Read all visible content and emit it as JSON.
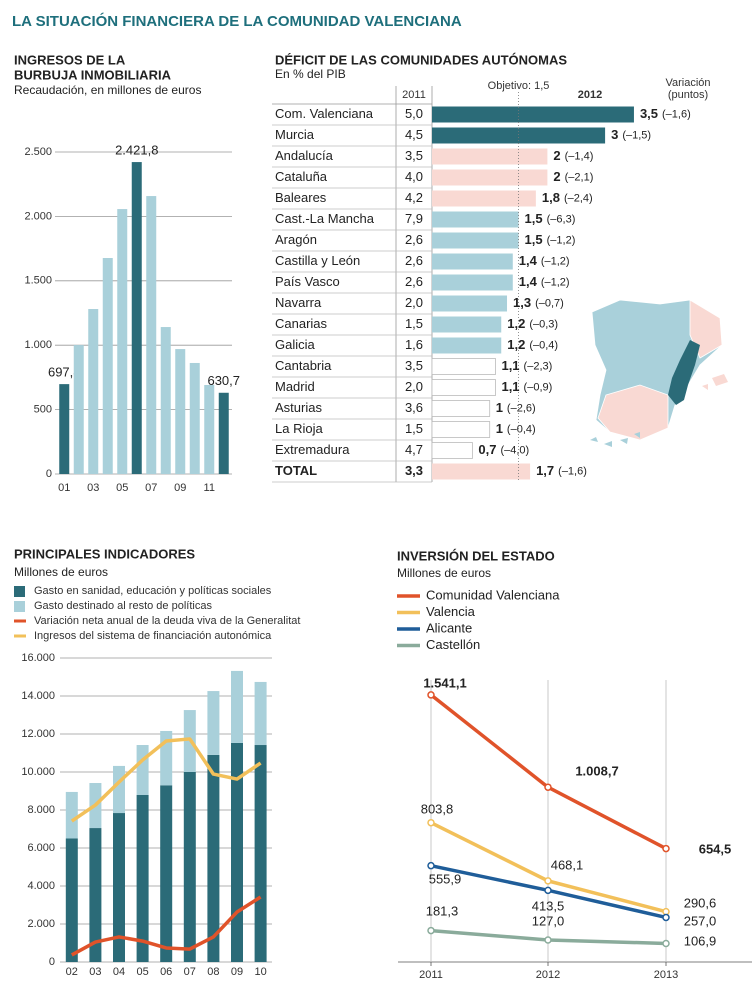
{
  "title": "LA SITUACIÓN FINANCIERA DE LA COMUNIDAD VALENCIANA",
  "chart_data": [
    {
      "type": "bar",
      "title": [
        "INGRESOS DE LA",
        "BURBUJA INMOBILIARIA"
      ],
      "subtitle": "Recaudación, en millones de euros",
      "categories": [
        "01",
        null,
        "03",
        null,
        "05",
        null,
        "07",
        null,
        "09",
        null,
        "11",
        null
      ],
      "values": [
        697.8,
        1001,
        1281,
        1677,
        2057,
        2421.8,
        2158,
        1141,
        970,
        862,
        691,
        630.7
      ],
      "value_labels": [
        "697,8",
        null,
        null,
        null,
        null,
        "2.421,8",
        null,
        null,
        null,
        null,
        null,
        "630,7"
      ],
      "colors": [
        "#2b6b78",
        "#a9d0da",
        "#a9d0da",
        "#a9d0da",
        "#a9d0da",
        "#2b6b78",
        "#a9d0da",
        "#a9d0da",
        "#a9d0da",
        "#a9d0da",
        "#a9d0da",
        "#2b6b78"
      ],
      "ylim": [
        0,
        2500
      ],
      "yticks": [
        0,
        500,
        {
          "value": 1000,
          "label": "1.000"
        },
        {
          "value": 1500,
          "label": "1.500"
        },
        {
          "value": 2000,
          "label": "2.000"
        },
        {
          "value": 2500,
          "label": "2.500"
        }
      ],
      "grid": true
    },
    {
      "type": "tablebar",
      "title": "DÉFICIT DE LAS COMUNIDADES AUTÓNOMAS",
      "subtitle": "En % del PIB",
      "objective": {
        "value": 1.5,
        "label": "Objetivo: 1,5"
      },
      "categories": [
        "Com. Valenciana",
        "Murcia",
        "Andalucía",
        "Cataluña",
        "Baleares",
        "Cast.-La Mancha",
        "Aragón",
        "Castilla y León",
        "País Vasco",
        "Navarra",
        "Canarias",
        "Galicia",
        "Cantabria",
        "Madrid",
        "Asturias",
        "La Rioja",
        "Extremadura",
        "TOTAL"
      ],
      "series": [
        {
          "name": "2011",
          "values": [
            5.0,
            4.5,
            3.5,
            4.0,
            4.2,
            7.9,
            2.6,
            2.6,
            2.6,
            2.0,
            1.5,
            1.6,
            3.5,
            2.0,
            3.6,
            1.5,
            4.7,
            3.3
          ],
          "value_labels": [
            "5,0",
            "4,5",
            "3,5",
            "4,0",
            "4,2",
            "7,9",
            "2,6",
            "2,6",
            "2,6",
            "2,0",
            "1,5",
            "1,6",
            "3,5",
            "2,0",
            "3,6",
            "1,5",
            "4,7",
            "3,3"
          ]
        },
        {
          "name": "2012",
          "values": [
            3.5,
            3,
            2,
            2,
            1.8,
            1.5,
            1.5,
            1.4,
            1.4,
            1.3,
            1.2,
            1.2,
            1.1,
            1.1,
            1,
            1,
            0.7,
            1.7
          ],
          "value_labels": [
            "3,5",
            "3",
            "2",
            "2",
            "1,8",
            "1,5",
            "1,5",
            "1,4",
            "1,4",
            "1,3",
            "1,2",
            "1,2",
            "1,1",
            "1,1",
            "1",
            "1",
            "0,7",
            "1,7"
          ],
          "colors": [
            "#2b6b78",
            "#2b6b78",
            "#f9d9d3",
            "#f9d9d3",
            "#f9d9d3",
            "#a9d0da",
            "#a9d0da",
            "#a9d0da",
            "#a9d0da",
            "#a9d0da",
            "#a9d0da",
            "#a9d0da",
            "#ffffff",
            "#ffffff",
            "#ffffff",
            "#ffffff",
            "#ffffff",
            "#f9d9d3"
          ]
        },
        {
          "name_lines": [
            "Variación",
            "(puntos)"
          ],
          "values": [
            -1.6,
            -1.5,
            -1.4,
            -2.1,
            -2.4,
            -6.3,
            -1.2,
            -1.2,
            -1.2,
            -0.7,
            -0.3,
            -0.4,
            -2.3,
            -0.9,
            -2.6,
            -0.4,
            -4.0,
            -1.6
          ],
          "value_labels": [
            "(–1,6)",
            "(–1,5)",
            "(–1,4)",
            "(–2,1)",
            "(–2,4)",
            "(–6,3)",
            "(–1,2)",
            "(–1,2)",
            "(–1,2)",
            "(–0,7)",
            "(–0,3)",
            "(–0,4)",
            "(–2,3)",
            "(–0,9)",
            "(–2,6)",
            "(–0,4)",
            "(–4,0)",
            "(–1,6)"
          ]
        }
      ]
    },
    {
      "type": "combo",
      "title": "PRINCIPALES INDICADORES",
      "subtitle": "Millones de euros",
      "categories": [
        "02",
        "03",
        "04",
        "05",
        "06",
        "07",
        "08",
        "09",
        "10"
      ],
      "series": [
        {
          "name": "Gasto en sanidad, educación y políticas sociales",
          "kind": "bar",
          "color": "#2b6b78",
          "values": [
            6500,
            7050,
            7840,
            8790,
            9300,
            10000,
            10900,
            11530,
            11420
          ]
        },
        {
          "name": "Gasto destinado al resto de políticas",
          "kind": "bar",
          "color": "#a9d0da",
          "values": [
            2450,
            2370,
            2480,
            2630,
            2860,
            3260,
            3360,
            3790,
            3320
          ]
        },
        {
          "name": "Variación neta anual de la deuda viva de la Generalitat",
          "kind": "line",
          "color": "#e0532a",
          "values": [
            370,
            1050,
            1320,
            1100,
            740,
            680,
            1320,
            2630,
            3420
          ]
        },
        {
          "name": "Ingresos del sistema de financiación autonómica",
          "kind": "line",
          "color": "#f2c05a",
          "values": [
            7420,
            8260,
            9470,
            10630,
            11630,
            11740,
            9890,
            9630,
            10470
          ]
        }
      ],
      "ylim": [
        0,
        16000
      ],
      "yticks": [
        0,
        {
          "value": 2000,
          "label": "2.000"
        },
        {
          "value": 4000,
          "label": "4.000"
        },
        {
          "value": 6000,
          "label": "6.000"
        },
        {
          "value": 8000,
          "label": "8.000"
        },
        {
          "value": 10000,
          "label": "10.000"
        },
        {
          "value": 12000,
          "label": "12.000"
        },
        {
          "value": 14000,
          "label": "14.000"
        },
        {
          "value": 16000,
          "label": "16.000"
        }
      ],
      "grid": true
    },
    {
      "type": "line",
      "title": "INVERSIÓN DEL ESTADO",
      "subtitle": "Millones de euros",
      "categories": [
        "2011",
        "2012",
        "2013"
      ],
      "series": [
        {
          "name": "Comunidad Valenciana",
          "color": "#e0532a",
          "values": [
            1541.1,
            1008.7,
            654.5
          ],
          "value_labels": [
            "1.541,1",
            "1.008,7",
            "654,5"
          ]
        },
        {
          "name": "Valencia",
          "color": "#f2c05a",
          "values": [
            803.8,
            468.1,
            290.6
          ],
          "value_labels": [
            "803,8",
            "468,1",
            "290,6"
          ]
        },
        {
          "name": "Alicante",
          "color": "#1f5d99",
          "values": [
            555.9,
            413.5,
            257.0
          ],
          "value_labels": [
            "555,9",
            "413,5",
            "257,0"
          ]
        },
        {
          "name": "Castellón",
          "color": "#8aab9b",
          "values": [
            181.3,
            127.0,
            106.9
          ],
          "value_labels": [
            "181,3",
            "127,0",
            "106,9"
          ]
        }
      ]
    }
  ]
}
